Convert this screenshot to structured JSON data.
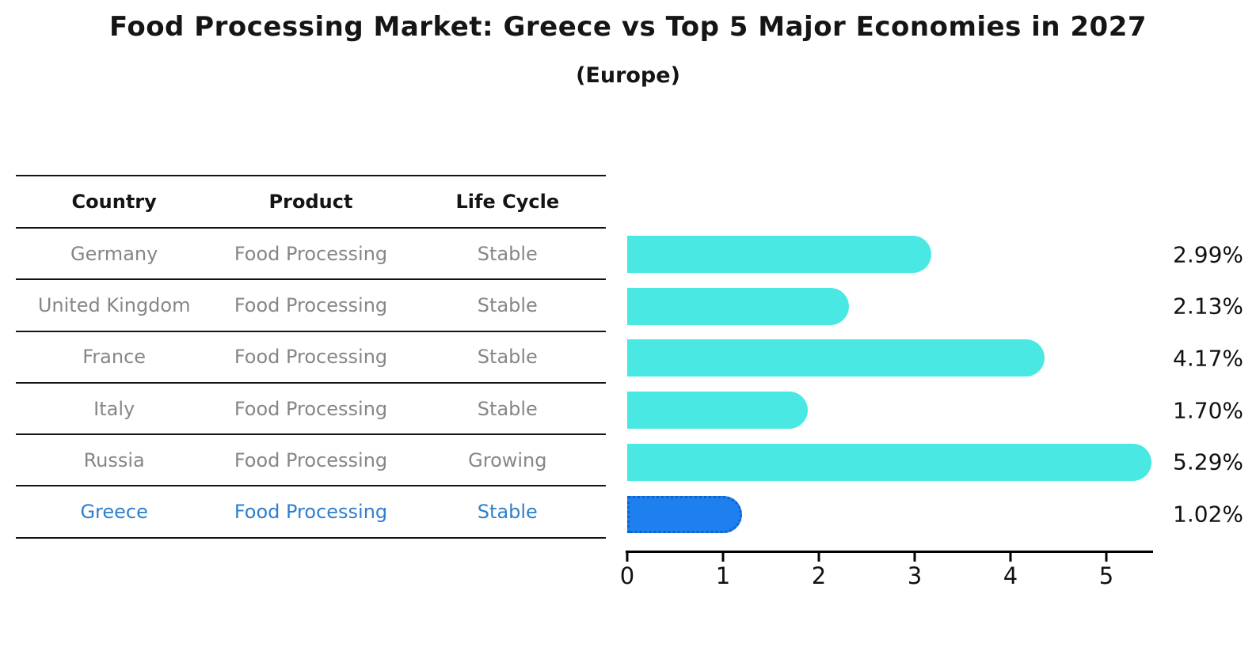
{
  "title": "Food Processing Market: Greece vs Top 5 Major Economies in 2027",
  "subtitle": "(Europe)",
  "table": {
    "headers": [
      "Country",
      "Product",
      "Life Cycle"
    ],
    "rows": [
      {
        "country": "Germany",
        "product": "Food Processing",
        "life_cycle": "Stable",
        "highlight": false
      },
      {
        "country": "United Kingdom",
        "product": "Food Processing",
        "life_cycle": "Stable",
        "highlight": false
      },
      {
        "country": "France",
        "product": "Food Processing",
        "life_cycle": "Stable",
        "highlight": false
      },
      {
        "country": "Italy",
        "product": "Food Processing",
        "life_cycle": "Stable",
        "highlight": false
      },
      {
        "country": "Russia",
        "product": "Food Processing",
        "life_cycle": "Growing",
        "highlight": false
      },
      {
        "country": "Greece",
        "product": "Food Processing",
        "life_cycle": "Stable",
        "highlight": true
      }
    ]
  },
  "chart_data": {
    "type": "bar",
    "orientation": "horizontal",
    "title": "Food Processing Market: Greece vs Top 5 Major Economies in 2027",
    "subtitle": "(Europe)",
    "categories": [
      "Germany",
      "United Kingdom",
      "France",
      "Italy",
      "Russia",
      "Greece"
    ],
    "values": [
      2.99,
      2.13,
      4.17,
      1.7,
      5.29,
      1.02
    ],
    "value_labels": [
      "2.99%",
      "2.13%",
      "4.17%",
      "1.70%",
      "5.29%",
      "1.02%"
    ],
    "xlabel": "",
    "ylabel": "",
    "xlim": [
      0,
      5.5
    ],
    "x_ticks": [
      0,
      1,
      2,
      3,
      4,
      5
    ],
    "grid": false,
    "legend": "none",
    "bar_color": "#4AE8E2",
    "highlight_bar_color": "#1E80EE",
    "highlight_border_color": "#0F62C8",
    "highlight_index": 5,
    "highlighted_category": "Greece",
    "row_text_color": "#868686",
    "highlight_text_color": "#2E7FCC"
  }
}
